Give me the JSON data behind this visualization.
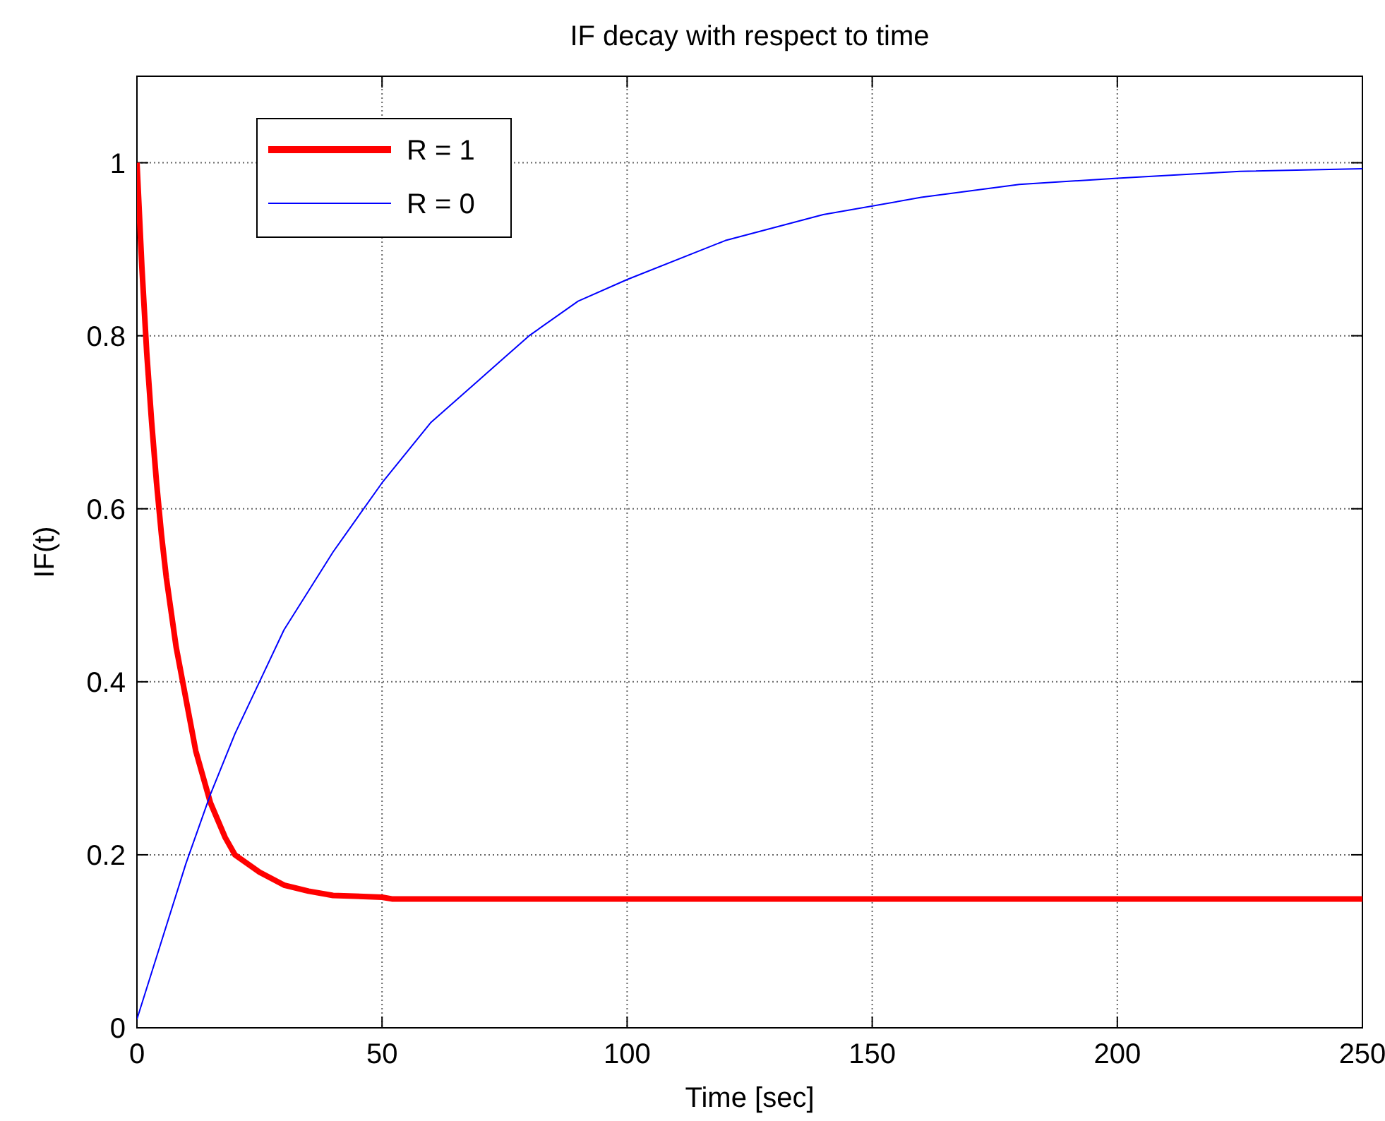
{
  "chart_data": {
    "type": "line",
    "title": "IF decay with respect to time",
    "xlabel": "Time [sec]",
    "ylabel": "IF(t)",
    "xlim": [
      0,
      250
    ],
    "ylim": [
      0,
      1.1
    ],
    "xticks": [
      0,
      50,
      100,
      150,
      200,
      250
    ],
    "yticks": [
      0,
      0.2,
      0.4,
      0.6,
      0.8,
      1
    ],
    "grid": true,
    "legend": "top left",
    "line_style": "solid",
    "marker": "none",
    "series": [
      {
        "name": "R = 1",
        "color": "#ff0000",
        "x": [
          0,
          1,
          2,
          3,
          4,
          5,
          6,
          8,
          10,
          12,
          15,
          18,
          20,
          25,
          30,
          35,
          40,
          50,
          52,
          100,
          150,
          200,
          250
        ],
        "values": [
          1,
          0.88,
          0.78,
          0.7,
          0.63,
          0.57,
          0.52,
          0.44,
          0.38,
          0.32,
          0.26,
          0.22,
          0.2,
          0.18,
          0.165,
          0.158,
          0.153,
          0.151,
          0.149,
          0.149,
          0.149,
          0.149,
          0.149
        ]
      },
      {
        "name": "R = 0",
        "color": "#0000ff",
        "x": [
          0,
          5,
          10,
          15,
          20,
          25,
          30,
          40,
          50,
          60,
          70,
          80,
          90,
          100,
          120,
          140,
          160,
          180,
          200,
          225,
          250
        ],
        "values": [
          0.01,
          0.1,
          0.19,
          0.27,
          0.34,
          0.4,
          0.46,
          0.55,
          0.63,
          0.7,
          0.75,
          0.8,
          0.84,
          0.865,
          0.91,
          0.94,
          0.96,
          0.975,
          0.982,
          0.99,
          0.993
        ]
      }
    ]
  }
}
